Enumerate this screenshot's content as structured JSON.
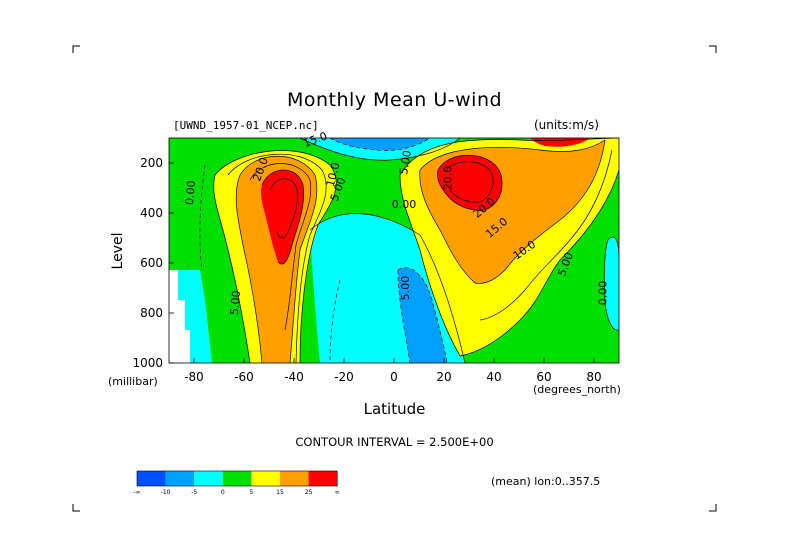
{
  "chart_data": {
    "type": "heatmap",
    "title": "Monthly Mean U-wind",
    "dataset": "[UWND_1957-01_NCEP.nc]",
    "units": "(units:m/s)",
    "xlabel": "Latitude",
    "xunit": "(degrees_north)",
    "ylabel": "Level",
    "yunit": "(millibar)",
    "xlim": [
      -90,
      90
    ],
    "ylim": [
      1000,
      100
    ],
    "x_ticks": [
      -80,
      -60,
      -40,
      -20,
      0,
      20,
      40,
      60,
      80
    ],
    "y_ticks": [
      200,
      400,
      600,
      800,
      1000
    ],
    "contour_interval_text": "CONTOUR INTERVAL = 2.500E+00",
    "mean_text": "(mean) lon:0..357.5",
    "colorbar": {
      "colors": [
        "#0050ff",
        "#00a0ff",
        "#00ffff",
        "#00e000",
        "#ffff00",
        "#ffa000",
        "#ff0000"
      ],
      "labels": [
        "-∞",
        "-10",
        "-5",
        "0",
        "5",
        "15",
        "25",
        "∞"
      ]
    },
    "contour_labels": [
      {
        "text": "0.00",
        "x": -80,
        "y": 320,
        "angle": -85
      },
      {
        "text": "20.0",
        "x": -52,
        "y": 230,
        "angle": -70
      },
      {
        "text": "15.0",
        "x": -31,
        "y": 120,
        "angle": -20
      },
      {
        "text": "10.0",
        "x": -23,
        "y": 250,
        "angle": -75
      },
      {
        "text": "5.00",
        "x": -21,
        "y": 310,
        "angle": -70
      },
      {
        "text": "5.00",
        "x": 6,
        "y": 200,
        "angle": -80
      },
      {
        "text": "0.00",
        "x": 4,
        "y": 380,
        "angle": 0
      },
      {
        "text": "5.00",
        "x": 6,
        "y": 700,
        "angle": -90
      },
      {
        "text": "20.0",
        "x": 23,
        "y": 260,
        "angle": -90
      },
      {
        "text": "20.0",
        "x": 37,
        "y": 390,
        "angle": -40
      },
      {
        "text": "15.0",
        "x": 42,
        "y": 470,
        "angle": -40
      },
      {
        "text": "10.0",
        "x": 53,
        "y": 560,
        "angle": -35
      },
      {
        "text": "5.00",
        "x": 70,
        "y": 610,
        "angle": -70
      },
      {
        "text": "5.00",
        "x": -62,
        "y": 760,
        "angle": -85
      },
      {
        "text": "0.00",
        "x": 85,
        "y": 720,
        "angle": -90
      }
    ]
  }
}
